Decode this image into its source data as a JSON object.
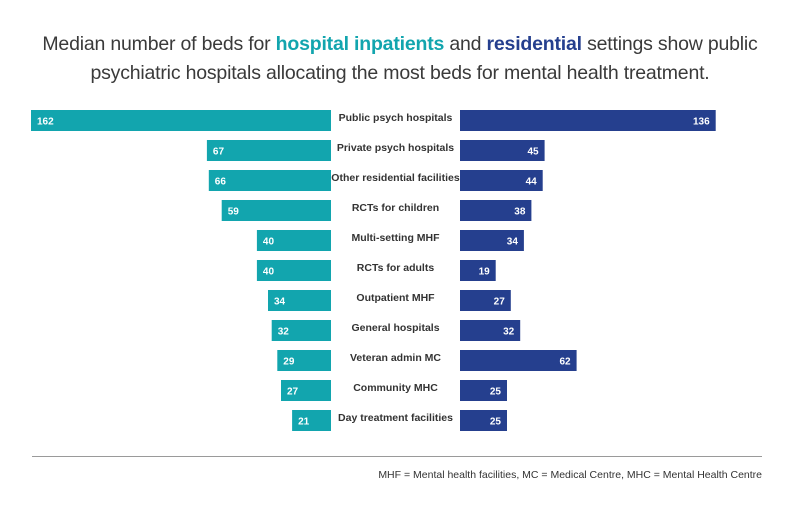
{
  "title": {
    "part1": "Median number of beds for ",
    "highlight1": "hospital inpatients",
    "part2": " and ",
    "highlight2": "residential",
    "part3": " settings show public",
    "line2": "psychiatric hospitals allocating the most beds for mental health treatment."
  },
  "colors": {
    "hospital": "#12a5ae",
    "residential": "#253f8e",
    "text": "#333333"
  },
  "chart_data": {
    "type": "bar",
    "orientation": "horizontal-butterfly",
    "categories": [
      "Public psych hospitals",
      "Private psych hospitals",
      "Other residential facilities",
      "RCTs for children",
      "Multi-setting MHF",
      "RCTs for adults",
      "Outpatient MHF",
      "General hospitals",
      "Veteran admin MC",
      "Community MHC",
      "Day treatment facilities"
    ],
    "series": [
      {
        "values": [
          162,
          67,
          66,
          59,
          40,
          40,
          34,
          32,
          29,
          27,
          21
        ]
      },
      {
        "values": [
          136,
          45,
          44,
          38,
          34,
          19,
          27,
          32,
          62,
          25,
          25
        ]
      }
    ],
    "xlim": [
      0,
      162
    ]
  },
  "footnote": "MHF = Mental health facilities, MC = Medical Centre, MHC = Mental Health Centre"
}
